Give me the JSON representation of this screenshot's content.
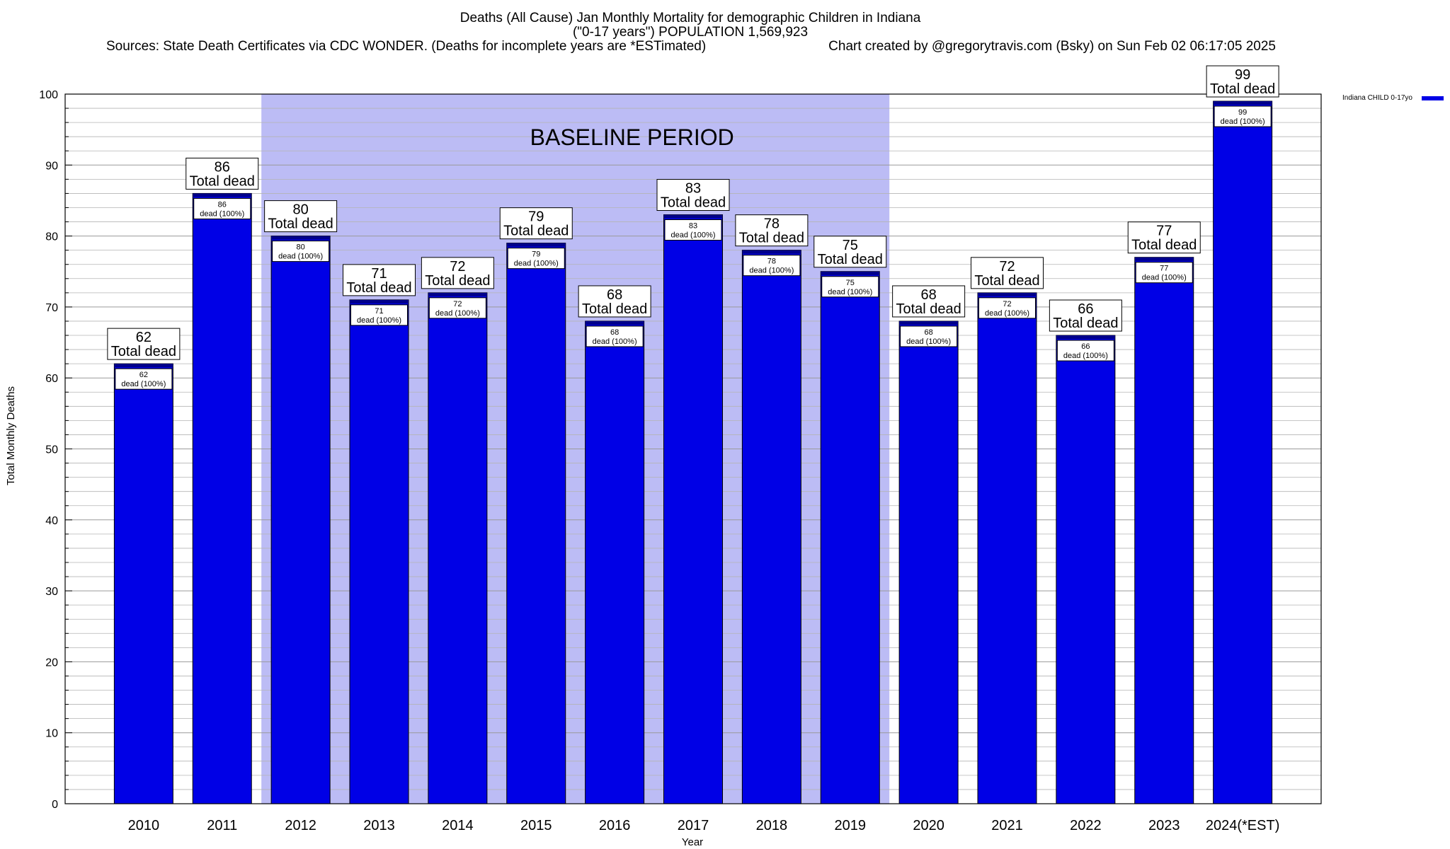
{
  "chart_data": {
    "type": "bar",
    "title": "Deaths (All Cause) Jan Monthly Mortality for demographic Children in Indiana",
    "subtitle": "(\"0-17 years\") POPULATION 1,569,923",
    "sources": "Sources: State Death Certificates via CDC WONDER. (Deaths for incomplete years are *ESTimated)",
    "credit": "Chart created by @gregorytravis.com (Bsky) on Sun Feb 02 06:17:05 2025",
    "xlabel": "Year",
    "ylabel": "Total Monthly Deaths",
    "ylim": [
      0,
      100
    ],
    "yticks": [
      0,
      10,
      20,
      30,
      40,
      50,
      60,
      70,
      80,
      90,
      100
    ],
    "grid": true,
    "baseline_label": "BASELINE PERIOD",
    "baseline_range": [
      "2012",
      "2019"
    ],
    "categories": [
      "2010",
      "2011",
      "2012",
      "2013",
      "2014",
      "2015",
      "2016",
      "2017",
      "2018",
      "2019",
      "2020",
      "2021",
      "2022",
      "2023",
      "2024(*EST)"
    ],
    "series": [
      {
        "name": "Indiana CHILD 0-17yo",
        "values": [
          62,
          86,
          80,
          71,
          72,
          79,
          68,
          83,
          78,
          75,
          68,
          72,
          66,
          77,
          99
        ]
      }
    ],
    "total_label_suffix": "Total dead",
    "inner_label_suffix": "dead (100%)",
    "legend_position": "top-right",
    "colors": {
      "bar": "#0000e6",
      "bar_top": "#00008b",
      "baseline_band": "#bcbcf5",
      "grid": "#b4b4b4"
    }
  }
}
